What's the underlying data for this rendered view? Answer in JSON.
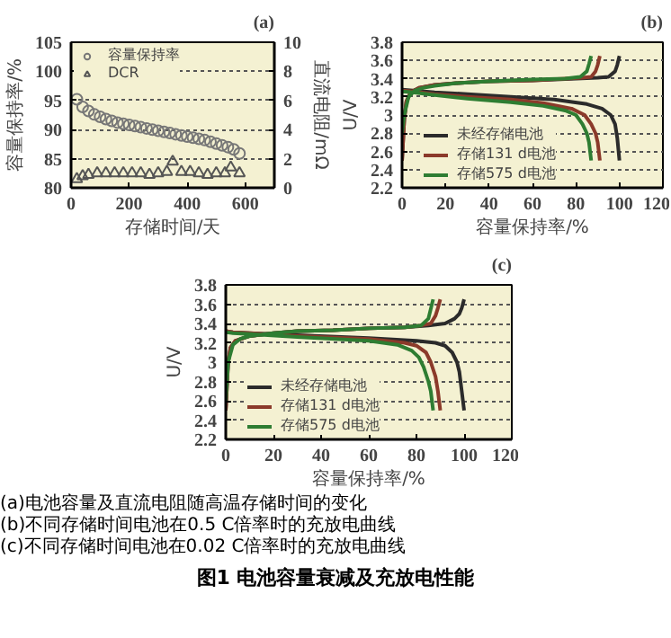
{
  "chart_data": [
    {
      "type": "scatter",
      "title": "(a)",
      "xlabel": "存储时间/天",
      "ylabel": "容量保持率/%",
      "y2label": "直流电阻/mΩ",
      "xlim": [
        0,
        700
      ],
      "xticks": [
        0,
        200,
        400,
        600
      ],
      "ylim": [
        80,
        105
      ],
      "yticks": [
        80,
        85,
        90,
        95,
        100,
        105
      ],
      "y2lim": [
        0,
        10
      ],
      "y2ticks": [
        0,
        2,
        4,
        6,
        8,
        10
      ],
      "grid": "y",
      "legend": "top left",
      "series": [
        {
          "name": "容量保持率",
          "color": "#777777",
          "marker": "circle",
          "x": [
            20,
            40,
            60,
            80,
            100,
            120,
            140,
            160,
            180,
            200,
            220,
            240,
            260,
            280,
            300,
            320,
            340,
            360,
            380,
            400,
            420,
            440,
            460,
            480,
            500,
            520,
            540,
            560,
            580
          ],
          "values": [
            95.2,
            93.9,
            93.2,
            92.6,
            92.2,
            91.8,
            91.5,
            91.2,
            91.0,
            90.8,
            90.6,
            90.4,
            90.2,
            90.0,
            89.8,
            89.6,
            89.4,
            89.2,
            89.0,
            88.8,
            88.6,
            88.4,
            88.2,
            87.9,
            87.6,
            87.3,
            87.0,
            86.6,
            85.9
          ]
        },
        {
          "name": "DCR",
          "color": "#555555",
          "marker": "triangle",
          "axis": "y2",
          "x": [
            20,
            40,
            60,
            90,
            120,
            150,
            180,
            210,
            240,
            270,
            300,
            330,
            350,
            380,
            410,
            440,
            470,
            500,
            530,
            550,
            580
          ],
          "values": [
            0.6,
            0.8,
            0.9,
            1.0,
            1.0,
            1.0,
            1.0,
            1.0,
            1.0,
            0.9,
            1.0,
            1.1,
            1.8,
            1.1,
            1.1,
            1.0,
            0.9,
            1.0,
            1.0,
            1.4,
            1.0
          ]
        }
      ]
    },
    {
      "type": "line",
      "title": "(b)",
      "xlabel": "容量保持率/%",
      "ylabel": "U/V",
      "xlim": [
        0,
        120
      ],
      "xticks": [
        0,
        20,
        40,
        60,
        80,
        100,
        120
      ],
      "ylim": [
        2.2,
        3.8
      ],
      "yticks": [
        2.2,
        2.4,
        2.6,
        2.8,
        3.0,
        3.2,
        3.4,
        3.6,
        3.8
      ],
      "grid": "y",
      "legend": "bottom left",
      "series": [
        {
          "name": "未经存储电池",
          "color": "#2b2b2b",
          "x": [
            0,
            1,
            2,
            4,
            8,
            15,
            25,
            40,
            60,
            80,
            90,
            95,
            98,
            99,
            100,
            null,
            0,
            5,
            15,
            30,
            50,
            70,
            85,
            92,
            96,
            98,
            99,
            100
          ],
          "values": [
            2.5,
            2.95,
            3.15,
            3.25,
            3.3,
            3.33,
            3.35,
            3.37,
            3.38,
            3.4,
            3.41,
            3.42,
            3.48,
            3.55,
            3.65,
            null,
            3.28,
            3.27,
            3.25,
            3.23,
            3.2,
            3.17,
            3.12,
            3.07,
            3.0,
            2.9,
            2.75,
            2.5
          ]
        },
        {
          "name": "存储131 d电池",
          "color": "#8b3a2a",
          "x": [
            0,
            1,
            2,
            4,
            8,
            15,
            25,
            40,
            60,
            75,
            83,
            87,
            89,
            90,
            91,
            null,
            0,
            5,
            15,
            30,
            50,
            65,
            78,
            84,
            87,
            89,
            90,
            91
          ],
          "values": [
            2.5,
            2.95,
            3.15,
            3.25,
            3.3,
            3.33,
            3.35,
            3.37,
            3.38,
            3.4,
            3.41,
            3.42,
            3.48,
            3.55,
            3.65,
            null,
            3.27,
            3.26,
            3.23,
            3.2,
            3.17,
            3.13,
            3.07,
            3.0,
            2.9,
            2.8,
            2.7,
            2.5
          ]
        },
        {
          "name": "存储575 d电池",
          "color": "#2e7d32",
          "x": [
            0,
            1,
            3,
            6,
            10,
            15,
            25,
            40,
            60,
            75,
            82,
            85,
            86,
            87,
            null,
            0,
            5,
            15,
            30,
            50,
            65,
            75,
            80,
            83,
            85,
            86,
            87
          ],
          "values": [
            2.8,
            3.0,
            3.2,
            3.27,
            3.3,
            3.32,
            3.35,
            3.37,
            3.39,
            3.4,
            3.42,
            3.48,
            3.56,
            3.65,
            null,
            3.26,
            3.25,
            3.22,
            3.18,
            3.14,
            3.1,
            3.05,
            3.0,
            2.9,
            2.8,
            2.7,
            2.5
          ]
        }
      ]
    },
    {
      "type": "line",
      "title": "(c)",
      "xlabel": "容量保持率/%",
      "ylabel": "U/V",
      "xlim": [
        0,
        120
      ],
      "xticks": [
        0,
        20,
        40,
        60,
        80,
        100,
        120
      ],
      "ylim": [
        2.2,
        3.8
      ],
      "yticks": [
        2.2,
        2.4,
        2.6,
        2.8,
        3.0,
        3.2,
        3.4,
        3.6,
        3.8
      ],
      "grid": "y",
      "legend": "bottom left",
      "annotations": [
        "(a)电池容量及直流电阻随高温存储时间的变化",
        "(b)不同存储时间电池在0.5 C倍率时的充放电曲线",
        "(c)不同存储时间电池在0.02 C倍率时的充放电曲线",
        "图1 电池容量衰减及充放电性能"
      ],
      "series": [
        {
          "name": "未经存储电池",
          "color": "#2b2b2b",
          "x": [
            0,
            1,
            2,
            4,
            10,
            20,
            30,
            45,
            60,
            75,
            85,
            92,
            96,
            98,
            99,
            100,
            null,
            0,
            3,
            10,
            30,
            60,
            80,
            88,
            92,
            95,
            97,
            98,
            99,
            100
          ],
          "values": [
            2.5,
            3.0,
            3.15,
            3.22,
            3.27,
            3.3,
            3.32,
            3.33,
            3.35,
            3.36,
            3.38,
            3.4,
            3.45,
            3.5,
            3.56,
            3.65,
            null,
            3.32,
            3.31,
            3.3,
            3.28,
            3.25,
            3.22,
            3.2,
            3.17,
            3.1,
            3.0,
            2.9,
            2.7,
            2.5
          ]
        },
        {
          "name": "存储131 d电池",
          "color": "#8b3a2a",
          "x": [
            0,
            1,
            2,
            4,
            10,
            20,
            30,
            45,
            60,
            75,
            82,
            86,
            88,
            89,
            90,
            null,
            0,
            3,
            10,
            30,
            60,
            75,
            80,
            84,
            86,
            88,
            89,
            90
          ],
          "values": [
            2.5,
            3.0,
            3.15,
            3.22,
            3.27,
            3.3,
            3.32,
            3.33,
            3.35,
            3.36,
            3.38,
            3.4,
            3.48,
            3.56,
            3.65,
            null,
            3.32,
            3.31,
            3.3,
            3.27,
            3.24,
            3.2,
            3.17,
            3.1,
            3.0,
            2.85,
            2.7,
            2.5
          ]
        },
        {
          "name": "存储575 d电池",
          "color": "#2e7d32",
          "x": [
            0,
            1,
            3,
            6,
            10,
            20,
            30,
            45,
            60,
            75,
            82,
            85,
            86,
            87,
            null,
            0,
            3,
            10,
            30,
            60,
            72,
            78,
            81,
            83,
            85,
            86,
            87
          ],
          "values": [
            2.6,
            3.0,
            3.18,
            3.24,
            3.27,
            3.3,
            3.32,
            3.33,
            3.35,
            3.36,
            3.38,
            3.45,
            3.55,
            3.65,
            null,
            3.31,
            3.3,
            3.29,
            3.26,
            3.22,
            3.18,
            3.12,
            3.05,
            2.95,
            2.8,
            2.7,
            2.5
          ]
        }
      ]
    }
  ]
}
